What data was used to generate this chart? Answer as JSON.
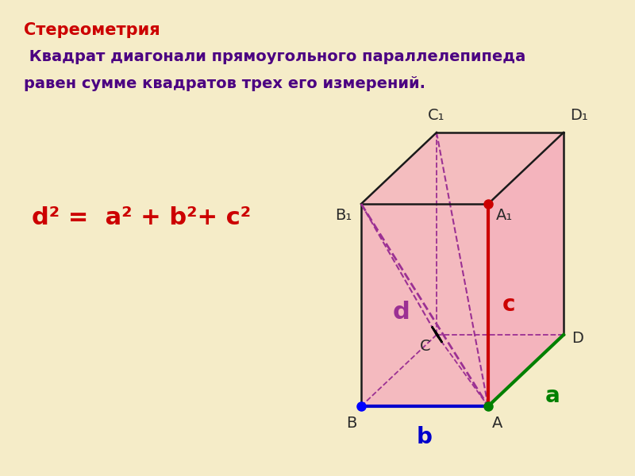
{
  "bg_color": "#F5ECC8",
  "title_line1": "Стереометрия",
  "title_line2": " Квадрат диагонали прямоугольного параллелепипеда",
  "title_line3": "равен сумме квадратов трех его измерений.",
  "formula": "d² =  a² + b²+ c²",
  "face_color": "#F4AABC",
  "edge_color": "#1a1a1a",
  "dashed_color": "#9B3093",
  "color_title": "#CC0000",
  "color_text": "#4B0082",
  "color_formula": "#CC0000",
  "color_a": "#008000",
  "color_b": "#0000CC",
  "color_c": "#CC0000",
  "color_d": "#9B3093",
  "dot_b": "#0000FF",
  "dot_a": "#008000",
  "dot_a1": "#CC0000",
  "vertex_label_color": "#2a2a2a"
}
